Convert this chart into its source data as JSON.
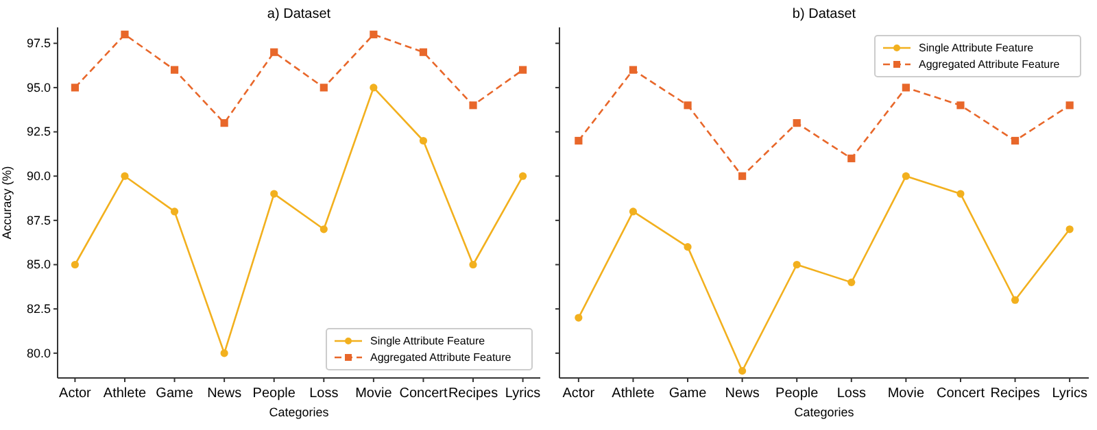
{
  "chart_data": [
    {
      "type": "line",
      "title": "a) Dataset",
      "xlabel": "Categories",
      "ylabel": "Accuracy (%)",
      "categories": [
        "Actor",
        "Athlete",
        "Game",
        "News",
        "People",
        "Loss",
        "Movie",
        "Concert",
        "Recipes",
        "Lyrics"
      ],
      "series": [
        {
          "name": "Single Attribute Feature",
          "color": "#f2b01e",
          "marker": "circle",
          "line_style": "solid",
          "values": [
            85,
            90,
            88,
            80,
            89,
            87,
            95,
            92,
            85,
            90
          ]
        },
        {
          "name": "Aggregated Attribute Feature",
          "color": "#e8672a",
          "marker": "square",
          "line_style": "dashed",
          "values": [
            95,
            98,
            96,
            93,
            97,
            95,
            98,
            97,
            94,
            96
          ]
        }
      ],
      "ylim": [
        78.6,
        98.4
      ],
      "yticks": [
        {
          "value": 80,
          "label": "80.0"
        },
        {
          "value": 82.5,
          "label": "82.5"
        },
        {
          "value": 85,
          "label": "85.0"
        },
        {
          "value": 87.5,
          "label": "87.5"
        },
        {
          "value": 90,
          "label": "90.0"
        },
        {
          "value": 92.5,
          "label": "92.5"
        },
        {
          "value": 95,
          "label": "95.0"
        },
        {
          "value": 97.5,
          "label": "97.5"
        }
      ],
      "legend": "bottom right"
    },
    {
      "type": "line",
      "title": "b) Dataset",
      "xlabel": "Categories",
      "categories": [
        "Actor",
        "Athlete",
        "Game",
        "News",
        "People",
        "Loss",
        "Movie",
        "Concert",
        "Recipes",
        "Lyrics"
      ],
      "series": [
        {
          "name": "Single Attribute Feature",
          "color": "#f2b01e",
          "marker": "circle",
          "line_style": "solid",
          "values": [
            82,
            88,
            86,
            79,
            85,
            84,
            90,
            89,
            83,
            87
          ]
        },
        {
          "name": "Aggregated Attribute Feature",
          "color": "#e8672a",
          "marker": "square",
          "line_style": "dashed",
          "values": [
            92,
            96,
            94,
            90,
            93,
            91,
            95,
            94,
            92,
            94
          ]
        }
      ],
      "ylim": [
        78.6,
        98.4
      ],
      "yticks": [
        80,
        82.5,
        85,
        87.5,
        90,
        92.5,
        95,
        97.5
      ],
      "tick_labels": "x",
      "legend": "top right"
    }
  ]
}
